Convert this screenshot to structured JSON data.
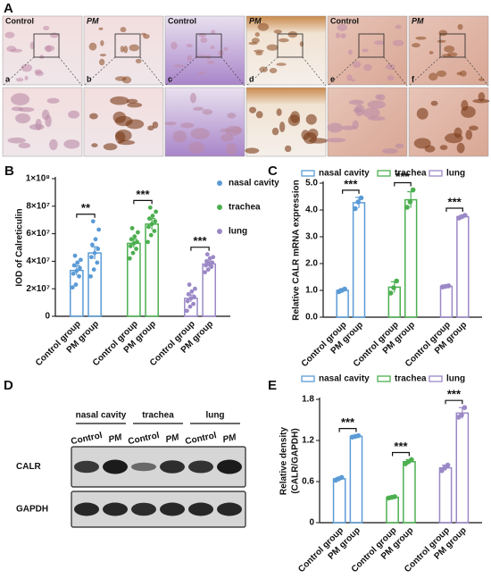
{
  "panel_a": {
    "letter": "A",
    "images": [
      {
        "label": "Control",
        "tag": "a"
      },
      {
        "label": "PM",
        "tag": "b"
      },
      {
        "label": "Control",
        "tag": "c"
      },
      {
        "label": "PM",
        "tag": "d"
      },
      {
        "label": "Control",
        "tag": "e"
      },
      {
        "label": "PM",
        "tag": "f"
      }
    ]
  },
  "panel_d": {
    "letter": "D",
    "tissues": [
      "nasal cavity",
      "trachea",
      "lung"
    ],
    "lanes": [
      "Control",
      "PM",
      "Control",
      "PM",
      "Control",
      "PM"
    ],
    "blots": [
      "CALR",
      "GAPDH"
    ]
  },
  "chart_data": [
    {
      "type": "bar",
      "panel": "B",
      "ylabel": "IOD of Calreticulin",
      "legend": "right",
      "categories": [
        "Control group",
        "PM group",
        "Control group",
        "PM group",
        "Control group",
        "PM group"
      ],
      "ylim": [
        0,
        100000000.0
      ],
      "yticks": [
        0,
        {
          "value": 20000000.0,
          "label": "2×10⁷"
        },
        {
          "value": 40000000.0,
          "label": "4×10⁷"
        },
        {
          "value": 60000000.0,
          "label": "6×10⁷"
        },
        {
          "value": 80000000.0,
          "label": "8×10⁷"
        },
        {
          "value": 100000000.0,
          "label": "1×10⁸"
        }
      ],
      "series": [
        {
          "name": "nasal cavity",
          "color": "#5b9bd5",
          "significance": "**",
          "values": [
            33300000.0,
            46000000.0,
            null,
            null,
            null,
            null
          ],
          "errors": [
            3500000.0,
            4500000.0,
            null,
            null,
            null,
            null
          ],
          "points": [
            [
              21000000.0,
              23000000.0,
              29000000.0,
              31000000.0,
              33000000.0,
              35000000.0,
              37000000.0,
              39000000.0,
              41000000.0,
              44000000.0
            ],
            [
              29000000.0,
              34000000.0,
              39000000.0,
              43000000.0,
              46000000.0,
              49000000.0,
              52000000.0,
              56000000.0,
              63000000.0,
              69000000.0
            ],
            null,
            null,
            null,
            null
          ]
        },
        {
          "name": "trachea",
          "color": "#4caf50",
          "significance": "***",
          "values": [
            null,
            null,
            53000000.0,
            67000000.0,
            null,
            null
          ],
          "errors": [
            null,
            null,
            3000000.0,
            4000000.0,
            null,
            null
          ],
          "points": [
            null,
            null,
            [
              42000000.0,
              46000000.0,
              49000000.0,
              51000000.0,
              53000000.0,
              54000000.0,
              56000000.0,
              58000000.0,
              61000000.0,
              64000000.0
            ],
            [
              54000000.0,
              59000000.0,
              62000000.0,
              65000000.0,
              67000000.0,
              69000000.0,
              71000000.0,
              73000000.0,
              76000000.0,
              79000000.0
            ],
            null,
            null
          ]
        },
        {
          "name": "lung",
          "color": "#9b88c6",
          "significance": "***",
          "values": [
            null,
            null,
            null,
            null,
            13000000.0,
            38000000.0
          ],
          "errors": [
            null,
            null,
            null,
            null,
            2500000.0,
            2000000.0
          ],
          "points": [
            null,
            null,
            null,
            null,
            [
              4000000.0,
              7000000.0,
              9000000.0,
              11000000.0,
              13000000.0,
              14000000.0,
              16000000.0,
              18000000.0,
              20000000.0,
              23000000.0
            ],
            [
              32000000.0,
              34000000.0,
              36000000.0,
              37000000.0,
              38000000.0,
              39000000.0,
              40000000.0,
              42000000.0,
              43000000.0,
              45000000.0
            ]
          ]
        }
      ]
    },
    {
      "type": "bar",
      "panel": "C",
      "ylabel": "Relative CALR mRNA expression",
      "legend": "top",
      "categories": [
        "Control group",
        "PM group",
        "Control group",
        "PM group",
        "Control group",
        "PM group"
      ],
      "ylim": [
        0,
        5
      ],
      "yticks": [
        {
          "value": 0,
          "label": "0.0"
        },
        {
          "value": 1,
          "label": "1.0"
        },
        {
          "value": 2,
          "label": "2.0"
        },
        {
          "value": 3,
          "label": "3.0"
        },
        {
          "value": 4,
          "label": "4.0"
        },
        {
          "value": 5,
          "label": "5.0"
        }
      ],
      "series": [
        {
          "name": "nasal cavity",
          "color": "#5b9bd5",
          "significance": "***",
          "values": [
            1.0,
            4.27,
            null,
            null,
            null,
            null
          ],
          "errors": [
            0.06,
            0.2,
            null,
            null,
            null,
            null
          ],
          "points": [
            [
              0.95,
              1.0,
              1.05
            ],
            [
              4.05,
              4.3,
              4.45
            ],
            null,
            null,
            null,
            null
          ]
        },
        {
          "name": "trachea",
          "color": "#4caf50",
          "significance": "***",
          "values": [
            null,
            null,
            1.12,
            4.38,
            null,
            null
          ],
          "errors": [
            null,
            null,
            0.2,
            0.3,
            null,
            null
          ],
          "points": [
            null,
            null,
            [
              0.9,
              1.1,
              1.35
            ],
            [
              4.1,
              4.3,
              4.75
            ],
            null,
            null
          ]
        },
        {
          "name": "lung",
          "color": "#9b88c6",
          "significance": "***",
          "values": [
            null,
            null,
            null,
            null,
            1.15,
            3.75
          ],
          "errors": [
            null,
            null,
            null,
            null,
            0.03,
            0.05
          ],
          "points": [
            null,
            null,
            null,
            null,
            [
              1.13,
              1.15,
              1.17
            ],
            [
              3.7,
              3.75,
              3.8
            ]
          ]
        }
      ]
    },
    {
      "type": "bar",
      "panel": "E",
      "ylabel": [
        "Relative density",
        "(CALR/GAPDH)"
      ],
      "legend": "top",
      "categories": [
        "Control group",
        "PM group",
        "Control group",
        "PM group",
        "Control group",
        "PM group"
      ],
      "ylim": [
        0,
        1.8
      ],
      "yticks": [
        0,
        0.6,
        1.2,
        1.8
      ],
      "series": [
        {
          "name": "nasal cavity",
          "color": "#5b9bd5",
          "significance": "***",
          "values": [
            0.64,
            1.26,
            null,
            null,
            null,
            null
          ],
          "errors": [
            0.02,
            0.01,
            null,
            null,
            null,
            null
          ],
          "points": [
            [
              0.62,
              0.64,
              0.66
            ],
            [
              1.25,
              1.26,
              1.27
            ],
            null,
            null,
            null,
            null
          ]
        },
        {
          "name": "trachea",
          "color": "#4caf50",
          "significance": "***",
          "values": [
            null,
            null,
            0.37,
            0.89,
            null,
            null
          ],
          "errors": [
            null,
            null,
            0.01,
            0.03,
            null,
            null
          ],
          "points": [
            null,
            null,
            [
              0.36,
              0.37,
              0.38
            ],
            [
              0.86,
              0.89,
              0.92
            ],
            null,
            null
          ]
        },
        {
          "name": "lung",
          "color": "#9b88c6",
          "significance": "***",
          "values": [
            null,
            null,
            null,
            null,
            0.8,
            1.6
          ],
          "errors": [
            null,
            null,
            null,
            null,
            0.04,
            0.08
          ],
          "points": [
            null,
            null,
            null,
            null,
            [
              0.76,
              0.8,
              0.84
            ],
            [
              1.54,
              1.57,
              1.68
            ]
          ]
        }
      ]
    }
  ]
}
